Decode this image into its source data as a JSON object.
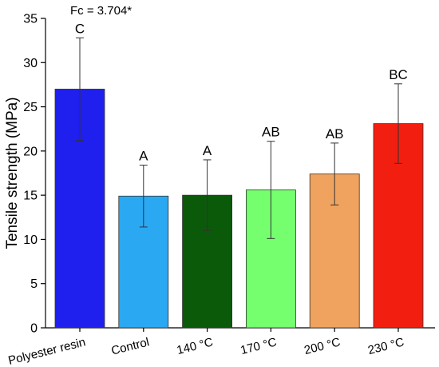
{
  "chart_data": {
    "type": "bar",
    "title": "",
    "annotation": "Fc = 3.704*",
    "ylabel": "Tensile strength (MPa)",
    "xlabel": "",
    "ylim": [
      0,
      35
    ],
    "yticks": [
      "0",
      "5",
      "10",
      "15",
      "20",
      "25",
      "30",
      "35"
    ],
    "categories": [
      "Polyester resin",
      "Control",
      "140 °C",
      "170 °C",
      "200 °C",
      "230 °C"
    ],
    "values": [
      27.0,
      14.9,
      15.0,
      15.6,
      17.4,
      23.1
    ],
    "errors": [
      5.8,
      3.5,
      4.0,
      5.5,
      3.5,
      4.5
    ],
    "group_labels": [
      "C",
      "A",
      "A",
      "AB",
      "AB",
      "BC"
    ],
    "colors": [
      "#1f1fee",
      "#2aa8f2",
      "#0a5a0a",
      "#75ff6e",
      "#f0a35e",
      "#f21e10"
    ],
    "grid": false,
    "legend": "none"
  }
}
